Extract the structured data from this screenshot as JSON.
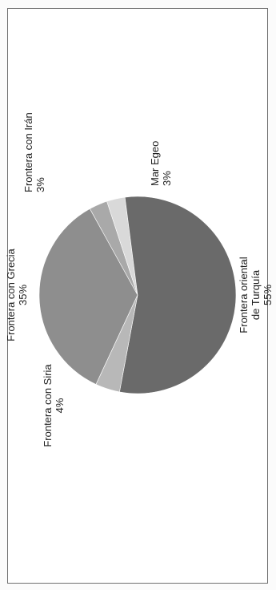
{
  "chart_data": {
    "type": "pie",
    "title": "",
    "slices": [
      {
        "label_lines": [
          "Frontera con Grecia",
          "35%"
        ],
        "value": 35,
        "color": "#8e8e8e"
      },
      {
        "label_lines": [
          "Frontera con Irán",
          "3%"
        ],
        "value": 3,
        "color": "#a9a9a9"
      },
      {
        "label_lines": [
          "Mar Egeo",
          "3%"
        ],
        "value": 3,
        "color": "#d9d9d9"
      },
      {
        "label_lines": [
          "Frontera oriental",
          "de Turquía",
          "55%"
        ],
        "value": 55,
        "color": "#6a6a6a"
      },
      {
        "label_lines": [
          "Frontera con Siria",
          "4%"
        ],
        "value": 4,
        "color": "#b8b8b8"
      }
    ],
    "legend": "none",
    "orientation": "rotated-90-ccw"
  }
}
